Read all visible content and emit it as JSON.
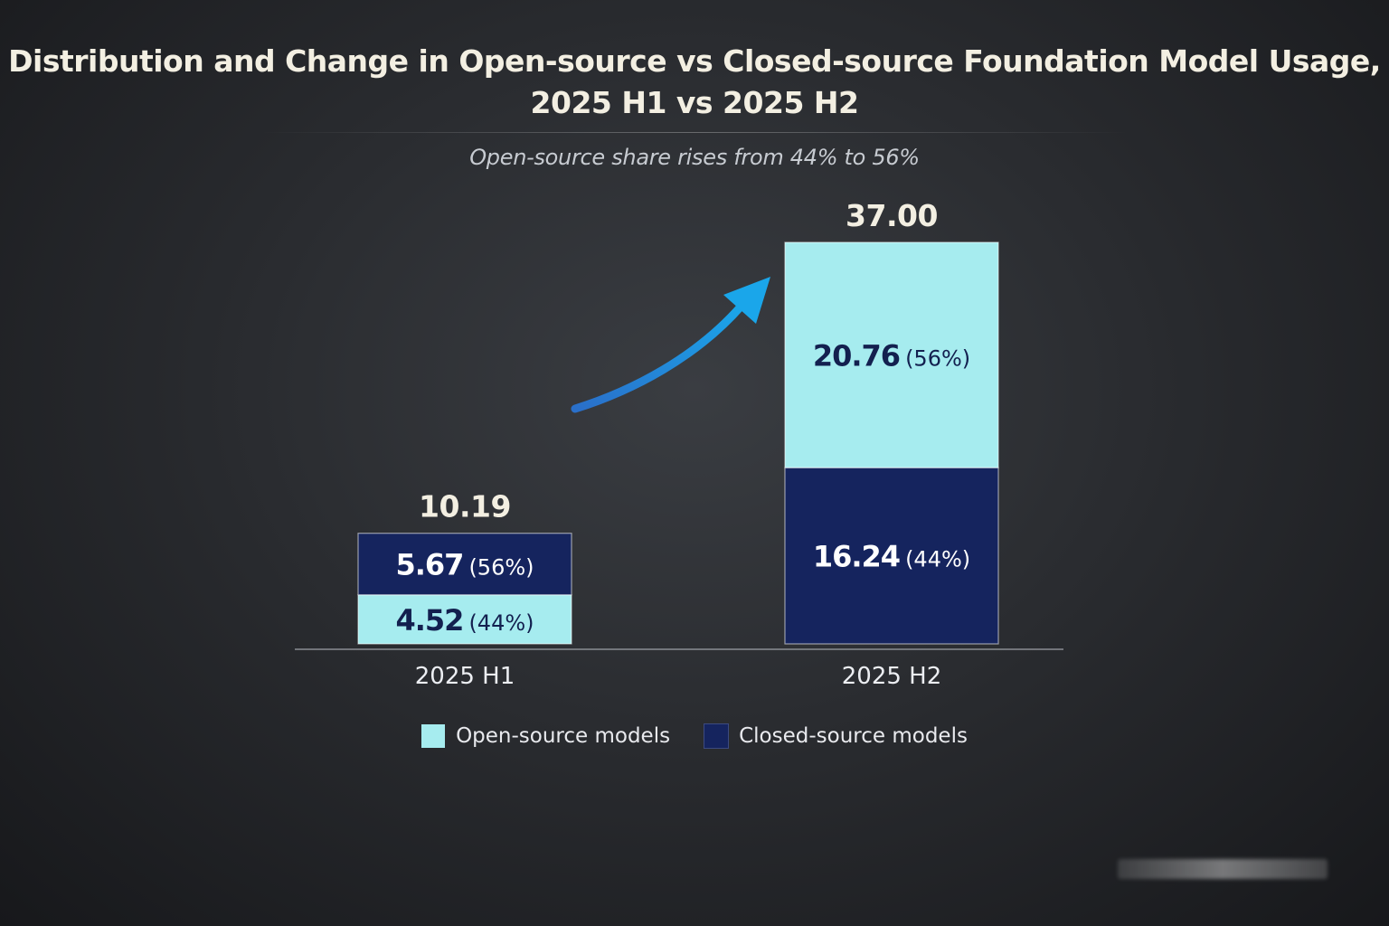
{
  "chart_data": {
    "type": "bar",
    "stacked": true,
    "title_lines": [
      "Distribution and Change in Open-source vs Closed-source Foundation Model Usage,",
      "2025 H1 vs 2025 H2"
    ],
    "subtitle": "Open-source share rises from 44% to 56%",
    "categories": [
      "2025 H1",
      "2025 H2"
    ],
    "totals": [
      "10.19",
      "37.00"
    ],
    "series": [
      {
        "name": "Open-source models",
        "values": [
          4.52,
          20.76
        ],
        "labels": [
          "4.52",
          "20.76"
        ],
        "shares": [
          "(44%)",
          "(56%)"
        ],
        "color": "#a6ecef",
        "text_color": "#13204f"
      },
      {
        "name": "Closed-source models",
        "values": [
          5.67,
          16.24
        ],
        "labels": [
          "5.67",
          "16.24"
        ],
        "shares": [
          "(56%)",
          "(44%)"
        ],
        "color": "#15245e",
        "text_color": "#ffffff"
      }
    ],
    "stack_order": [
      [
        "Open-source models",
        "Closed-source models"
      ],
      [
        "Closed-source models",
        "Open-source models"
      ]
    ],
    "legend_position": "bottom-center",
    "grid": false,
    "annotation": "growth-arrow"
  },
  "colors": {
    "open_source": "#a6ecef",
    "closed_source": "#15245e",
    "arrow": "#1aa6ea",
    "text_light": "#f3efe2"
  },
  "icons": [
    "arrow-up-right-icon"
  ]
}
